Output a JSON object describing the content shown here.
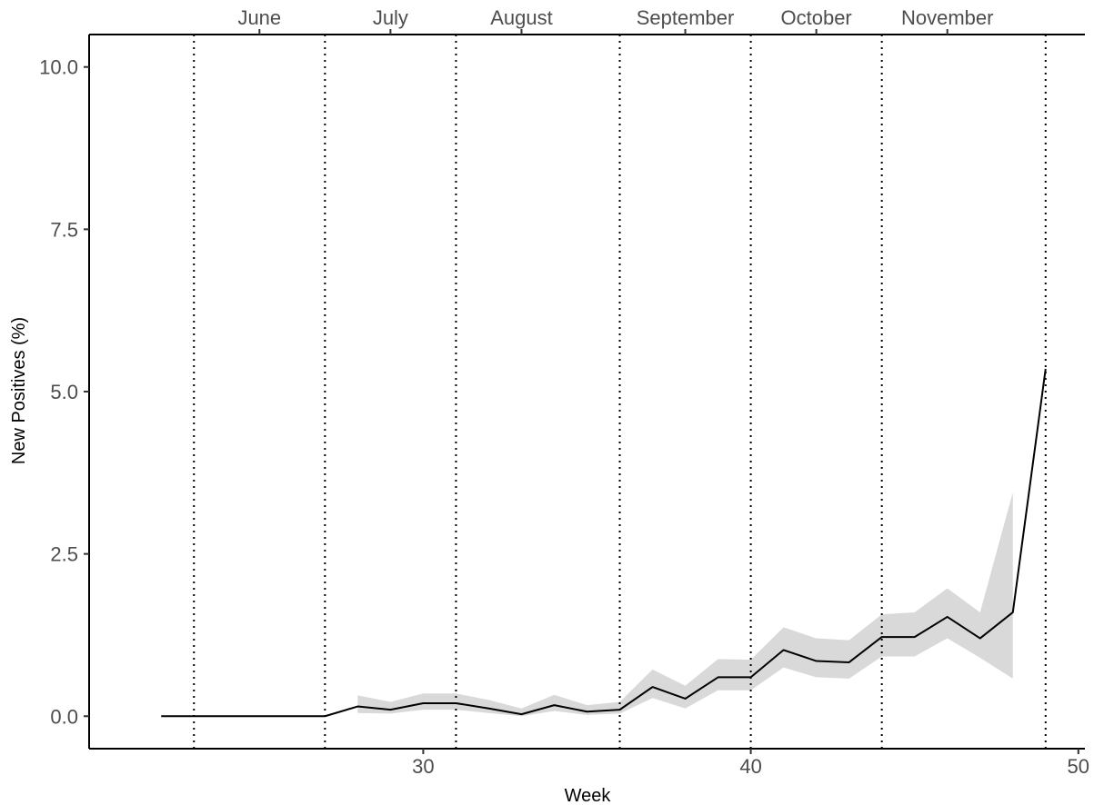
{
  "chart_data": {
    "type": "line",
    "title": "",
    "xlabel": "Week",
    "ylabel": "New Positives (%)",
    "xlim": [
      19.8,
      50.2
    ],
    "ylim": [
      -0.5,
      10.5
    ],
    "x_ticks": [
      30,
      40,
      50
    ],
    "x_tick_labels": [
      "30",
      "40",
      "50"
    ],
    "y_ticks": [
      0,
      2.5,
      5,
      7.5,
      10
    ],
    "y_tick_labels": [
      "0.0",
      "2.5",
      "5.0",
      "7.5",
      "10.0"
    ],
    "grid": false,
    "month_boundaries": [
      23,
      27,
      31,
      36,
      40,
      44,
      49
    ],
    "months": [
      {
        "label": "June",
        "x": 25
      },
      {
        "label": "July",
        "x": 29
      },
      {
        "label": "August",
        "x": 33
      },
      {
        "label": "September",
        "x": 38
      },
      {
        "label": "October",
        "x": 42
      },
      {
        "label": "November",
        "x": 46
      }
    ],
    "series": [
      {
        "x": [
          22,
          23,
          24,
          25,
          26,
          27,
          28,
          29,
          30,
          31,
          32,
          33,
          34,
          35,
          36,
          37,
          38,
          39,
          40,
          41,
          42,
          43,
          44,
          45,
          46,
          47,
          48,
          49
        ],
        "values": [
          0,
          0,
          0,
          0,
          0,
          0,
          0.15,
          0.1,
          0.2,
          0.2,
          0.12,
          0.03,
          0.17,
          0.07,
          0.1,
          0.45,
          0.27,
          0.6,
          0.6,
          1.02,
          0.85,
          0.83,
          1.22,
          1.22,
          1.53,
          1.2,
          1.6,
          5.35
        ],
        "color": "#000000"
      }
    ],
    "confidence_band": {
      "x": [
        28,
        29,
        30,
        31,
        32,
        33,
        34,
        35,
        36,
        37,
        38,
        39,
        40,
        41,
        42,
        43,
        44,
        45,
        46,
        47,
        48
      ],
      "lower": [
        0.05,
        0.04,
        0.1,
        0.1,
        0.05,
        0.0,
        0.08,
        0.02,
        0.04,
        0.28,
        0.12,
        0.4,
        0.4,
        0.75,
        0.6,
        0.58,
        0.92,
        0.92,
        1.2,
        0.9,
        0.58
      ],
      "upper": [
        0.32,
        0.22,
        0.35,
        0.35,
        0.25,
        0.12,
        0.33,
        0.17,
        0.22,
        0.72,
        0.47,
        0.88,
        0.87,
        1.37,
        1.2,
        1.17,
        1.57,
        1.6,
        1.97,
        1.6,
        3.45
      ],
      "color": "#d9d9d9"
    }
  }
}
